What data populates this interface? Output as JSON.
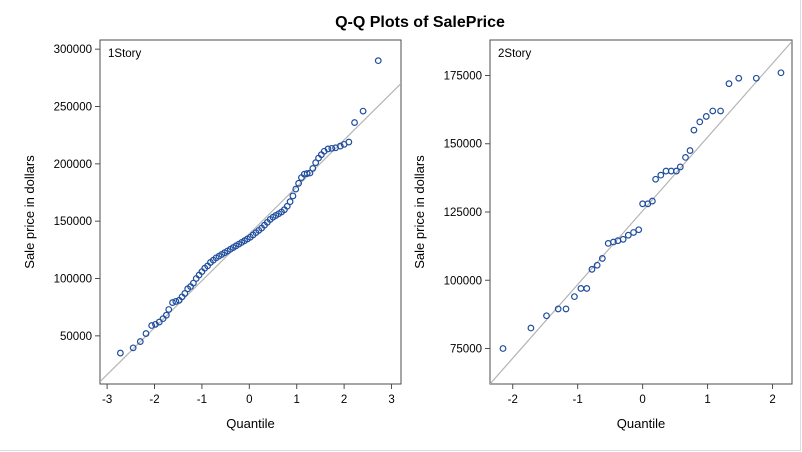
{
  "title": "Q-Q Plots of SalePrice",
  "chart_data": [
    {
      "type": "scatter",
      "panel_label": "1Story",
      "xlabel": "Quantile",
      "ylabel": "Sale price in dollars",
      "xlim": [
        -3.15,
        3.2
      ],
      "ylim": [
        8000,
        308000
      ],
      "x_ticks": [
        -3,
        -2,
        -1,
        0,
        1,
        2,
        3
      ],
      "y_ticks": [
        50000,
        100000,
        150000,
        200000,
        250000,
        300000
      ],
      "reference_line": [
        [
          -3.15,
          10000
        ],
        [
          3.2,
          270000
        ]
      ],
      "colors": {
        "marker": "#1f4e9e",
        "reference_line": "#b4b4b4",
        "axis": "#4d4d4d"
      },
      "points": [
        [
          -2.72,
          35000
        ],
        [
          -2.45,
          39500
        ],
        [
          -2.3,
          45000
        ],
        [
          -2.18,
          52000
        ],
        [
          -2.06,
          59000
        ],
        [
          -1.98,
          60000
        ],
        [
          -1.9,
          62000
        ],
        [
          -1.82,
          65000
        ],
        [
          -1.75,
          68000
        ],
        [
          -1.7,
          73000
        ],
        [
          -1.62,
          79000
        ],
        [
          -1.55,
          80000
        ],
        [
          -1.48,
          81000
        ],
        [
          -1.42,
          84000
        ],
        [
          -1.36,
          87000
        ],
        [
          -1.3,
          91000
        ],
        [
          -1.24,
          93000
        ],
        [
          -1.18,
          96000
        ],
        [
          -1.12,
          100000
        ],
        [
          -1.06,
          103000
        ],
        [
          -1.0,
          106000
        ],
        [
          -0.94,
          109000
        ],
        [
          -0.88,
          111000
        ],
        [
          -0.82,
          114000
        ],
        [
          -0.76,
          116000
        ],
        [
          -0.7,
          118000
        ],
        [
          -0.64,
          119500
        ],
        [
          -0.58,
          121000
        ],
        [
          -0.52,
          122500
        ],
        [
          -0.46,
          124000
        ],
        [
          -0.4,
          125500
        ],
        [
          -0.34,
          127000
        ],
        [
          -0.28,
          128500
        ],
        [
          -0.22,
          130000
        ],
        [
          -0.16,
          131500
        ],
        [
          -0.1,
          133000
        ],
        [
          -0.04,
          134500
        ],
        [
          0.02,
          136000
        ],
        [
          0.08,
          138000
        ],
        [
          0.14,
          140000
        ],
        [
          0.2,
          142000
        ],
        [
          0.26,
          144000
        ],
        [
          0.32,
          146500
        ],
        [
          0.38,
          149000
        ],
        [
          0.44,
          151500
        ],
        [
          0.5,
          153500
        ],
        [
          0.56,
          155000
        ],
        [
          0.62,
          156500
        ],
        [
          0.68,
          158000
        ],
        [
          0.74,
          160000
        ],
        [
          0.8,
          163000
        ],
        [
          0.86,
          167000
        ],
        [
          0.92,
          172000
        ],
        [
          0.98,
          178000
        ],
        [
          1.04,
          183000
        ],
        [
          1.1,
          188000
        ],
        [
          1.16,
          191000
        ],
        [
          1.22,
          191500
        ],
        [
          1.28,
          192000
        ],
        [
          1.34,
          196000
        ],
        [
          1.4,
          201000
        ],
        [
          1.46,
          205000
        ],
        [
          1.52,
          208000
        ],
        [
          1.58,
          211000
        ],
        [
          1.66,
          213000
        ],
        [
          1.74,
          213500
        ],
        [
          1.82,
          214000
        ],
        [
          1.92,
          215500
        ],
        [
          2.0,
          217000
        ],
        [
          2.1,
          219000
        ],
        [
          2.22,
          236000
        ],
        [
          2.4,
          246000
        ],
        [
          2.72,
          290000
        ]
      ]
    },
    {
      "type": "scatter",
      "panel_label": "2Story",
      "xlabel": "Quantile",
      "ylabel": "Sale price in dollars",
      "xlim": [
        -2.35,
        2.3
      ],
      "ylim": [
        62000,
        188000
      ],
      "x_ticks": [
        -2,
        -1,
        0,
        1,
        2
      ],
      "y_ticks": [
        75000,
        100000,
        125000,
        150000,
        175000
      ],
      "reference_line": [
        [
          -2.35,
          62000
        ],
        [
          2.3,
          187500
        ]
      ],
      "colors": {
        "marker": "#1f4e9e",
        "reference_line": "#b4b4b4",
        "axis": "#4d4d4d"
      },
      "points": [
        [
          -2.15,
          75000
        ],
        [
          -1.72,
          82500
        ],
        [
          -1.48,
          87000
        ],
        [
          -1.3,
          89500
        ],
        [
          -1.18,
          89500
        ],
        [
          -1.05,
          94000
        ],
        [
          -0.95,
          97000
        ],
        [
          -0.86,
          97000
        ],
        [
          -0.78,
          104000
        ],
        [
          -0.7,
          105500
        ],
        [
          -0.62,
          108000
        ],
        [
          -0.53,
          113500
        ],
        [
          -0.45,
          114000
        ],
        [
          -0.38,
          114500
        ],
        [
          -0.3,
          115000
        ],
        [
          -0.22,
          116500
        ],
        [
          -0.14,
          117500
        ],
        [
          -0.06,
          118500
        ],
        [
          0.0,
          128000
        ],
        [
          0.08,
          128000
        ],
        [
          0.15,
          129000
        ],
        [
          0.2,
          137000
        ],
        [
          0.28,
          138500
        ],
        [
          0.36,
          140000
        ],
        [
          0.44,
          140000
        ],
        [
          0.52,
          140000
        ],
        [
          0.58,
          141500
        ],
        [
          0.66,
          145000
        ],
        [
          0.73,
          147500
        ],
        [
          0.79,
          155000
        ],
        [
          0.88,
          158000
        ],
        [
          0.98,
          160000
        ],
        [
          1.08,
          162000
        ],
        [
          1.2,
          162000
        ],
        [
          1.33,
          172000
        ],
        [
          1.48,
          174000
        ],
        [
          1.75,
          174000
        ],
        [
          2.13,
          176000
        ]
      ]
    }
  ]
}
